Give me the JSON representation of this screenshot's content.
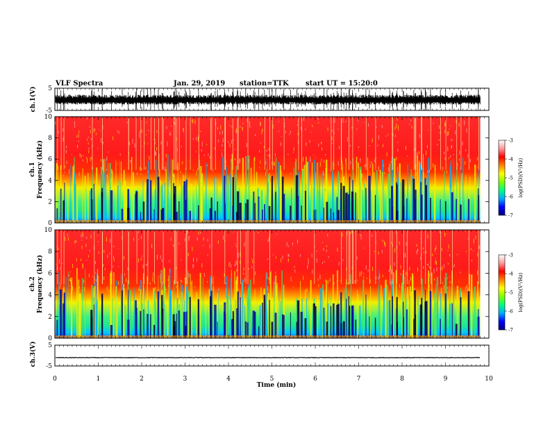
{
  "header": {
    "title": "VLF Spectra",
    "date": "Jan. 29, 2019",
    "station": "station=TTK",
    "start": "start UT = 15:20:0"
  },
  "chart_data": [
    {
      "type": "line",
      "name": "ch1-waveform",
      "ylabel": "ch.1(V)",
      "ylim": [
        -5,
        5
      ],
      "yticks": [
        "5",
        "-5"
      ],
      "xlim": [
        0,
        10
      ],
      "trace": "noisy waveform with frequent spikes reaching ±5 V over 0–9.8 min"
    },
    {
      "type": "heatmap",
      "name": "ch1-spectrogram",
      "ylabel": "ch.1  Frequency (kHz)",
      "ylim": [
        0,
        10
      ],
      "yticks": [
        "0",
        "2",
        "4",
        "6",
        "8",
        "10"
      ],
      "xlim": [
        0,
        10
      ],
      "data_xmax": 9.8,
      "colorbar": {
        "label": "log(PSD)(V²/Hz)",
        "range": [
          -7,
          -3
        ],
        "ticks": [
          "-3",
          "-4",
          "-5",
          "-6",
          "-7"
        ]
      }
    },
    {
      "type": "heatmap",
      "name": "ch2-spectrogram",
      "ylabel": "ch.2  Frequency (kHz)",
      "ylim": [
        0,
        10
      ],
      "yticks": [
        "0",
        "2",
        "4",
        "6",
        "8",
        "10"
      ],
      "xlim": [
        0,
        10
      ],
      "data_xmax": 9.8,
      "colorbar": {
        "label": "log(PSD)(V²/Hz)",
        "range": [
          -7,
          -3
        ],
        "ticks": [
          "-3",
          "-4",
          "-5",
          "-6",
          "-7"
        ]
      }
    },
    {
      "type": "line",
      "name": "ch3-waveform",
      "ylabel": "ch.3(V)",
      "ylim": [
        -5,
        5
      ],
      "yticks": [
        "5",
        "-5"
      ],
      "xlim": [
        0,
        10
      ],
      "trace": "nearly flat line at about -1 V"
    }
  ],
  "xaxis": {
    "label": "Time (min)",
    "ticks": [
      "0",
      "1",
      "2",
      "3",
      "4",
      "5",
      "6",
      "7",
      "8",
      "9",
      "10"
    ]
  },
  "colorbar_label": "log(PSD)(V²/Hz)",
  "colors": {
    "cb_stops": [
      "#000080",
      "#0000ff",
      "#00aaff",
      "#00ff80",
      "#80ff00",
      "#ffff00",
      "#ff8000",
      "#ff0000",
      "#ff9999",
      "#ffffff"
    ]
  }
}
